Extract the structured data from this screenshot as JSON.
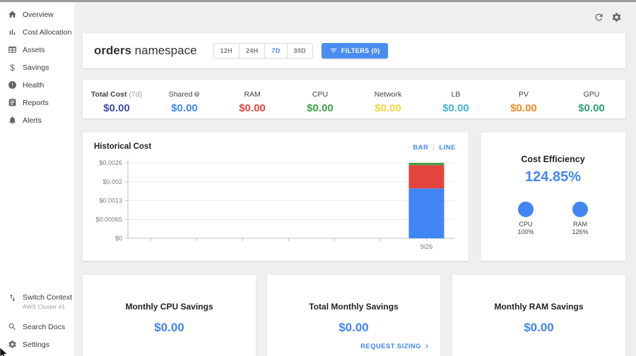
{
  "sidebar": {
    "items": [
      {
        "label": "Overview"
      },
      {
        "label": "Cost Allocation"
      },
      {
        "label": "Assets"
      },
      {
        "label": "Savings"
      },
      {
        "label": "Health"
      },
      {
        "label": "Reports"
      },
      {
        "label": "Alerts"
      }
    ],
    "footer": {
      "switch_context": "Switch Context",
      "context_value": "AWS Cluster #1",
      "search_docs": "Search Docs",
      "settings": "Settings"
    }
  },
  "header": {
    "title_bold": "orders",
    "title_regular": "namespace",
    "ranges": [
      {
        "label": "12H",
        "active": false
      },
      {
        "label": "24H",
        "active": false
      },
      {
        "label": "7D",
        "active": true
      },
      {
        "label": "30D",
        "active": false
      }
    ],
    "filters_label": "FILTERS (0)"
  },
  "stats": [
    {
      "label": "Total Cost",
      "suffix": "(7d)",
      "value": "$0.00",
      "color": "#3b4db3"
    },
    {
      "label": "Shared",
      "value": "$0.00",
      "color": "#4285f4"
    },
    {
      "label": "RAM",
      "value": "$0.00",
      "color": "#e5433d"
    },
    {
      "label": "CPU",
      "value": "$0.00",
      "color": "#43a047"
    },
    {
      "label": "Network",
      "value": "$0.00",
      "color": "#f7d73e"
    },
    {
      "label": "LB",
      "value": "$0.00",
      "color": "#3fb8cc"
    },
    {
      "label": "PV",
      "value": "$0.00",
      "color": "#f6891f"
    },
    {
      "label": "GPU",
      "value": "$0.00",
      "color": "#2d9e78"
    }
  ],
  "historical": {
    "title": "Historical Cost",
    "toggle_bar": "BAR",
    "toggle_line": "LINE"
  },
  "chart_data": {
    "type": "bar",
    "stacked": true,
    "title": "Historical Cost",
    "x_slots": 7,
    "bar_slot": 6,
    "x_labels": [
      "9/26"
    ],
    "series": [
      {
        "name": "blue-segment",
        "color": "#4285f4",
        "values": [
          0.00172
        ]
      },
      {
        "name": "red-segment",
        "color": "#e5433d",
        "values": [
          0.0008
        ]
      },
      {
        "name": "green-segment",
        "color": "#43a047",
        "values": [
          8e-05
        ]
      }
    ],
    "ylim": [
      0,
      0.0026
    ],
    "yticks": [
      "$0",
      "$0.00065",
      "$0.0013",
      "$0.002",
      "$0.0026"
    ],
    "grid": true,
    "legend": "none"
  },
  "efficiency": {
    "title": "Cost Efficiency",
    "value": "124.85%",
    "donuts": [
      {
        "label": "CPU",
        "value": "100%"
      },
      {
        "label": "RAM",
        "value": "126%"
      }
    ]
  },
  "savings_cards": [
    {
      "title": "Monthly CPU Savings",
      "value": "$0.00"
    },
    {
      "title": "Total Monthly Savings",
      "value": "$0.00",
      "link": "REQUEST SIZING"
    },
    {
      "title": "Monthly RAM Savings",
      "value": "$0.00"
    }
  ]
}
